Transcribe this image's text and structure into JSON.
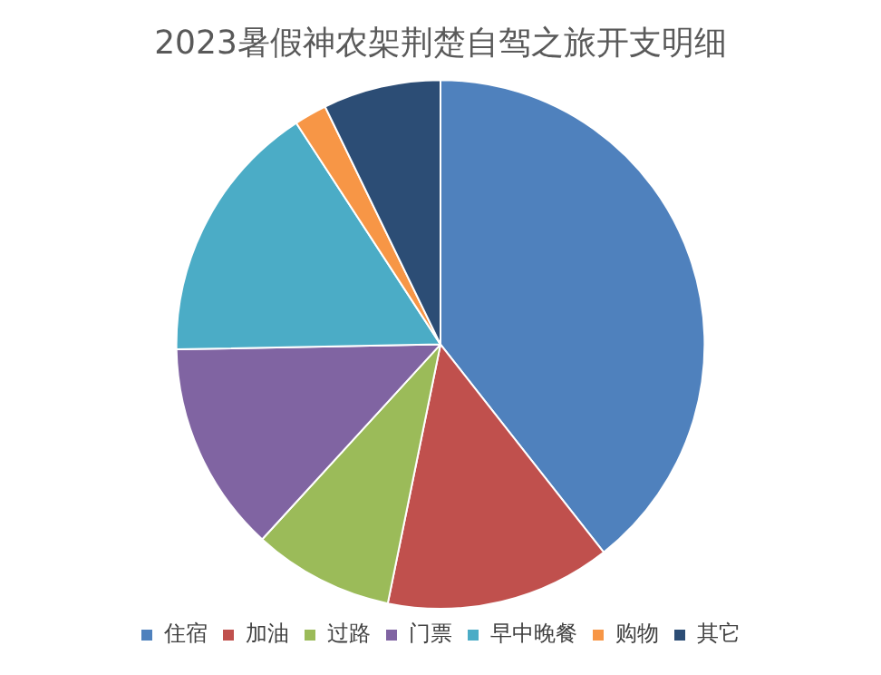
{
  "chart_data": {
    "type": "pie",
    "title": "2023暑假神农架荆楚自驾之旅开支明细",
    "categories": [
      "住宿",
      "加油",
      "过路",
      "门票",
      "早中晚餐",
      "购物",
      "其它"
    ],
    "values": [
      39.4,
      13.8,
      8.6,
      12.9,
      16.1,
      2.0,
      7.2
    ],
    "colors": [
      "#4f81bd",
      "#c0504d",
      "#9bbb59",
      "#8064a2",
      "#4bacc6",
      "#f79646",
      "#2c4d75"
    ],
    "legend": "bottom"
  }
}
